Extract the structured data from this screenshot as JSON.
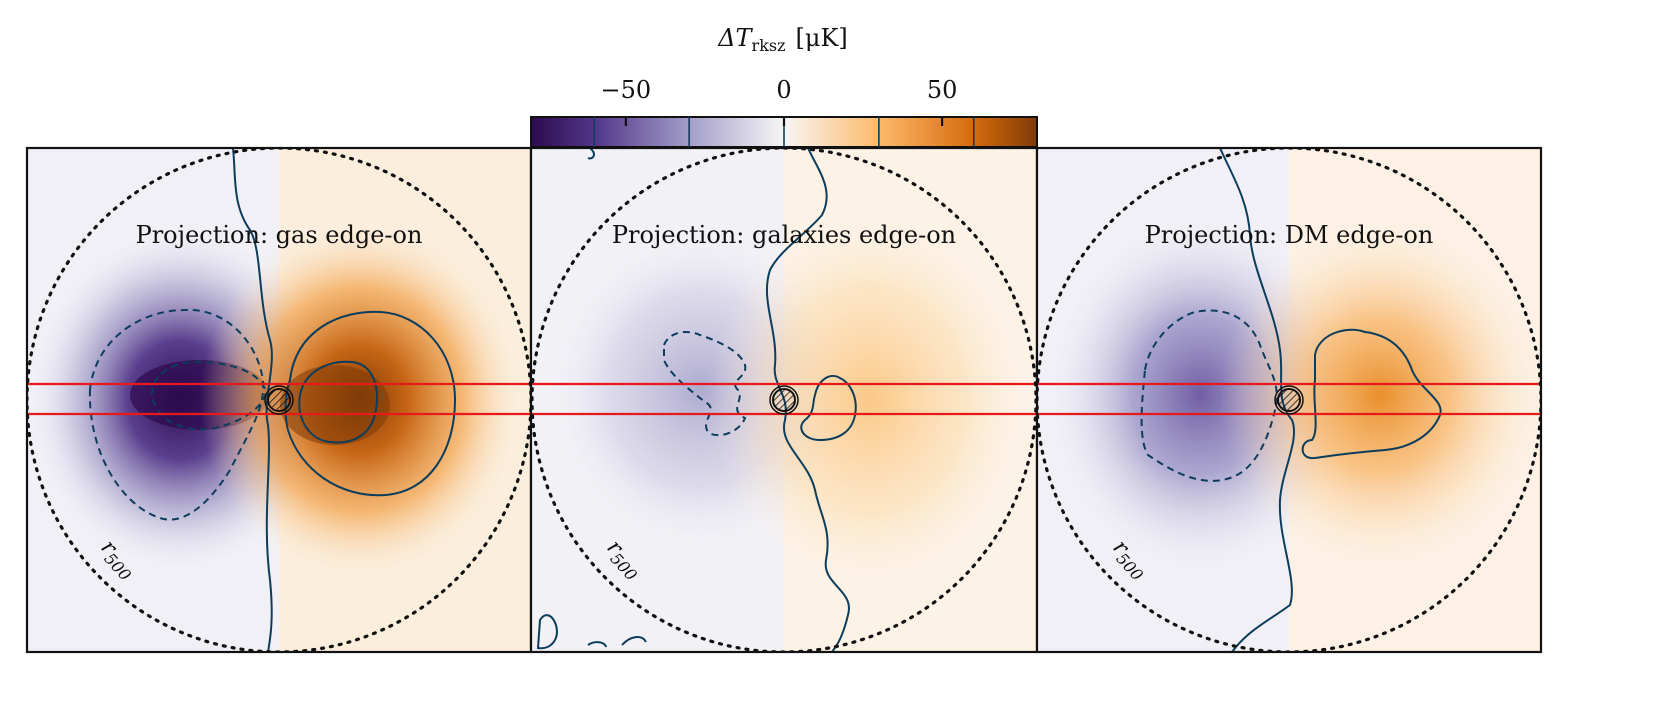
{
  "chart_data": {
    "type": "heatmap",
    "colorbar": {
      "label_main": "ΔT",
      "label_sub": "rksz",
      "label_unit": "[μK]",
      "range": [
        -80,
        80
      ],
      "ticks": [
        -50,
        0,
        50
      ],
      "tick_labels": [
        "−50",
        "0",
        "50"
      ],
      "contour_levels": [
        -60,
        -30,
        0,
        30,
        60
      ],
      "colormap_stops": [
        {
          "value": -80,
          "color": "#2d0a4e"
        },
        {
          "value": -60,
          "color": "#523689"
        },
        {
          "value": -30,
          "color": "#a39ec9"
        },
        {
          "value": 0,
          "color": "#f7f6f5"
        },
        {
          "value": 30,
          "color": "#fdba6a"
        },
        {
          "value": 60,
          "color": "#d56a0c"
        },
        {
          "value": 80,
          "color": "#7f3b08"
        }
      ]
    },
    "panels": [
      {
        "title": "Projection: gas edge-on",
        "radius_label_main": "r",
        "radius_label_sub": "500",
        "peak_negative": -80,
        "peak_positive": 80
      },
      {
        "title": "Projection: galaxies edge-on",
        "radius_label_main": "r",
        "radius_label_sub": "500",
        "peak_negative": -30,
        "peak_positive": 30
      },
      {
        "title": "Projection: DM edge-on",
        "radius_label_main": "r",
        "radius_label_sub": "500",
        "peak_negative": -45,
        "peak_positive": 45
      }
    ],
    "colors": {
      "contour": "#0d3d5c",
      "band": "#e8191a",
      "circle": "#111111"
    }
  }
}
